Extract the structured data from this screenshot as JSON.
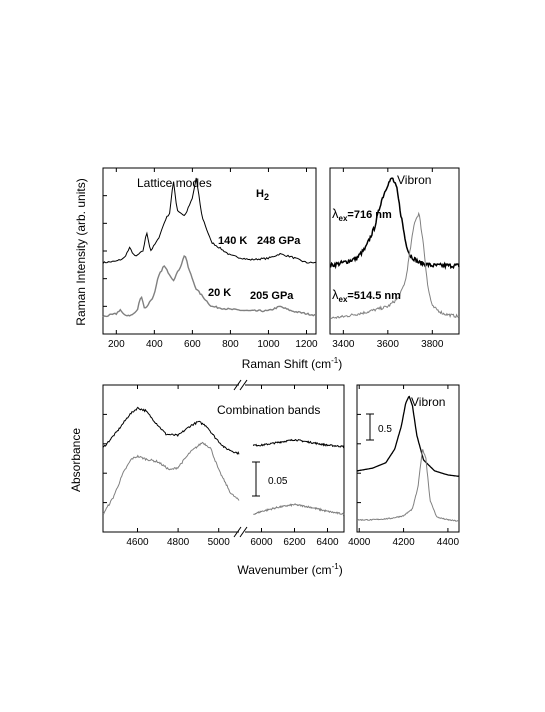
{
  "figure": {
    "top_ylabel": "Raman Intensity (arb. units)",
    "top_xlabel": "Raman Shift (cm",
    "top_xlabel_sup": "-1",
    "top_xlabel_close": ")",
    "bottom_ylabel": "Absorbance",
    "bottom_xlabel": "Wavenumber (cm",
    "bottom_xlabel_sup": "-1",
    "bottom_xlabel_close": ")"
  },
  "chart_data": [
    {
      "type": "line",
      "panel": "raman-lattice",
      "title": "Lattice modes",
      "species_label": "H",
      "species_sub": "2",
      "xlim": [
        130,
        1250
      ],
      "xticks": [
        200,
        400,
        600,
        800,
        1000,
        1200
      ],
      "annotations": [
        "140 K",
        "248 GPa",
        "20 K",
        "205 GPa"
      ],
      "series": [
        {
          "name": "140 K 248 GPa",
          "color": "#000000",
          "x": [
            130,
            200,
            240,
            270,
            300,
            340,
            360,
            380,
            420,
            460,
            480,
            500,
            520,
            560,
            600,
            620,
            650,
            700,
            800,
            900,
            1000,
            1060,
            1120,
            1200,
            1250
          ],
          "y": [
            0.42,
            0.43,
            0.45,
            0.52,
            0.46,
            0.5,
            0.63,
            0.5,
            0.58,
            0.72,
            0.76,
            0.98,
            0.78,
            0.74,
            0.86,
            1.0,
            0.74,
            0.56,
            0.47,
            0.44,
            0.45,
            0.48,
            0.46,
            0.42,
            0.42
          ]
        },
        {
          "name": "20 K 205 GPa",
          "color": "#808080",
          "x": [
            130,
            200,
            220,
            240,
            280,
            310,
            330,
            350,
            400,
            420,
            450,
            470,
            500,
            520,
            540,
            560,
            580,
            620,
            700,
            800,
            900,
            1000,
            1060,
            1120,
            1200,
            1250
          ],
          "y": [
            0.05,
            0.07,
            0.1,
            0.06,
            0.06,
            0.09,
            0.2,
            0.1,
            0.2,
            0.32,
            0.4,
            0.36,
            0.3,
            0.35,
            0.4,
            0.48,
            0.38,
            0.24,
            0.12,
            0.1,
            0.09,
            0.09,
            0.12,
            0.09,
            0.07,
            0.06
          ]
        }
      ]
    },
    {
      "type": "line",
      "panel": "raman-vibron",
      "title": "Vibron",
      "xlim": [
        3340,
        3920
      ],
      "xticks": [
        3400,
        3600,
        3800
      ],
      "annotations": [
        "λ",
        "ex",
        "=716 nm",
        "λ",
        "ex",
        "=514.5 nm"
      ],
      "series": [
        {
          "name": "λex=716 nm",
          "color": "#000000",
          "x": [
            3340,
            3400,
            3460,
            3500,
            3540,
            3570,
            3600,
            3620,
            3640,
            3660,
            3680,
            3700,
            3740,
            3800,
            3850,
            3920
          ],
          "y": [
            0.4,
            0.42,
            0.45,
            0.52,
            0.66,
            0.84,
            0.96,
            1.0,
            0.93,
            0.74,
            0.56,
            0.47,
            0.42,
            0.4,
            0.4,
            0.4
          ]
        },
        {
          "name": "λex=514.5 nm",
          "color": "#808080",
          "x": [
            3340,
            3400,
            3500,
            3600,
            3650,
            3680,
            3700,
            3720,
            3740,
            3760,
            3780,
            3800,
            3850,
            3920
          ],
          "y": [
            0.04,
            0.05,
            0.08,
            0.12,
            0.18,
            0.3,
            0.5,
            0.7,
            0.76,
            0.55,
            0.25,
            0.12,
            0.07,
            0.05
          ]
        }
      ]
    },
    {
      "type": "line",
      "panel": "absorbance-combination",
      "title": "Combination bands",
      "scale_bar_label": "0.05",
      "axis_break": true,
      "xlim_left": [
        4430,
        5100
      ],
      "xlim_right": [
        5900,
        6500
      ],
      "xticks": [
        4600,
        4800,
        5000,
        6000,
        6200,
        6400
      ],
      "series": [
        {
          "name": "upper",
          "color": "#000000",
          "x": [
            4430,
            4500,
            4560,
            4600,
            4640,
            4680,
            4740,
            4800,
            4860,
            4900,
            4940,
            4980,
            5030,
            5080,
            5100
          ],
          "y": [
            0.58,
            0.7,
            0.82,
            0.87,
            0.85,
            0.78,
            0.68,
            0.67,
            0.74,
            0.77,
            0.74,
            0.66,
            0.58,
            0.55,
            0.54
          ],
          "x2": [
            5950,
            6000,
            6100,
            6200,
            6300,
            6400,
            6500
          ],
          "y2": [
            0.6,
            0.6,
            0.62,
            0.64,
            0.62,
            0.6,
            0.59
          ]
        },
        {
          "name": "lower",
          "color": "#808080",
          "x": [
            4430,
            4480,
            4530,
            4570,
            4600,
            4640,
            4700,
            4760,
            4800,
            4860,
            4920,
            4960,
            5000,
            5060,
            5100
          ],
          "y": [
            0.1,
            0.22,
            0.4,
            0.5,
            0.52,
            0.5,
            0.48,
            0.42,
            0.44,
            0.55,
            0.62,
            0.58,
            0.42,
            0.25,
            0.2
          ],
          "x2": [
            5950,
            6000,
            6100,
            6200,
            6300,
            6400,
            6500
          ],
          "y2": [
            0.1,
            0.12,
            0.15,
            0.17,
            0.15,
            0.12,
            0.1
          ]
        }
      ]
    },
    {
      "type": "line",
      "panel": "absorbance-vibron",
      "title": "Vibron",
      "scale_bar_label": "0.5",
      "xlim": [
        3990,
        4450
      ],
      "xticks": [
        4000,
        4200,
        4400
      ],
      "series": [
        {
          "name": "upper",
          "color": "#000000",
          "x": [
            3990,
            4060,
            4120,
            4160,
            4190,
            4210,
            4225,
            4240,
            4260,
            4290,
            4340,
            4400,
            4450
          ],
          "y": [
            0.42,
            0.44,
            0.48,
            0.58,
            0.75,
            0.92,
            0.97,
            0.9,
            0.68,
            0.5,
            0.42,
            0.39,
            0.38
          ]
        },
        {
          "name": "lower",
          "color": "#808080",
          "x": [
            3990,
            4060,
            4140,
            4200,
            4240,
            4265,
            4285,
            4300,
            4320,
            4350,
            4400,
            4450
          ],
          "y": [
            0.06,
            0.06,
            0.07,
            0.09,
            0.14,
            0.3,
            0.58,
            0.52,
            0.2,
            0.08,
            0.06,
            0.05
          ]
        }
      ]
    }
  ]
}
